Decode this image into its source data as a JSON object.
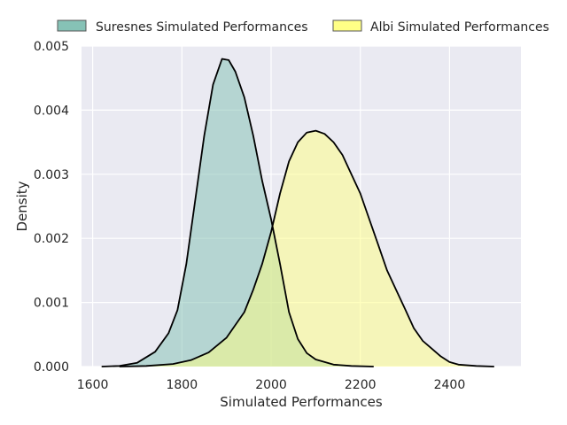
{
  "chart_data": {
    "type": "area",
    "xlabel": "Simulated Performances",
    "ylabel": "Density",
    "xlim": [
      1575,
      2560
    ],
    "ylim": [
      0,
      0.005
    ],
    "x_ticks": [
      1600,
      1800,
      2000,
      2200,
      2400
    ],
    "x_tick_labels": [
      "1600",
      "1800",
      "2000",
      "2200",
      "2400"
    ],
    "y_ticks": [
      0,
      0.001,
      0.002,
      0.003,
      0.004,
      0.005
    ],
    "y_tick_labels": [
      "0.000",
      "0.001",
      "0.002",
      "0.003",
      "0.004",
      "0.005"
    ],
    "grid": true,
    "legend_position": "top",
    "series": [
      {
        "name": "Suresnes Simulated Performances",
        "color": "#7fbfb2",
        "points": [
          [
            1620,
            0
          ],
          [
            1660,
            1e-05
          ],
          [
            1700,
            6e-05
          ],
          [
            1740,
            0.00023
          ],
          [
            1770,
            0.00052
          ],
          [
            1790,
            0.00088
          ],
          [
            1810,
            0.0016
          ],
          [
            1830,
            0.0026
          ],
          [
            1850,
            0.0036
          ],
          [
            1870,
            0.0044
          ],
          [
            1890,
            0.0048
          ],
          [
            1905,
            0.00478
          ],
          [
            1920,
            0.0046
          ],
          [
            1940,
            0.0042
          ],
          [
            1960,
            0.0036
          ],
          [
            1980,
            0.0029
          ],
          [
            2000,
            0.0023
          ],
          [
            2020,
            0.0016
          ],
          [
            2040,
            0.00085
          ],
          [
            2060,
            0.00043
          ],
          [
            2080,
            0.00021
          ],
          [
            2100,
            0.00011
          ],
          [
            2140,
            3e-05
          ],
          [
            2180,
            1e-05
          ],
          [
            2230,
            0
          ]
        ]
      },
      {
        "name": "Albi Simulated Performances",
        "color": "#ffff7f",
        "points": [
          [
            1660,
            0
          ],
          [
            1720,
            1e-05
          ],
          [
            1780,
            4e-05
          ],
          [
            1820,
            0.0001
          ],
          [
            1860,
            0.00022
          ],
          [
            1900,
            0.00045
          ],
          [
            1940,
            0.00085
          ],
          [
            1960,
            0.0012
          ],
          [
            1980,
            0.0016
          ],
          [
            2000,
            0.0021
          ],
          [
            2020,
            0.0027
          ],
          [
            2040,
            0.0032
          ],
          [
            2060,
            0.0035
          ],
          [
            2080,
            0.00365
          ],
          [
            2100,
            0.00368
          ],
          [
            2120,
            0.00363
          ],
          [
            2140,
            0.0035
          ],
          [
            2160,
            0.0033
          ],
          [
            2180,
            0.003
          ],
          [
            2200,
            0.0027
          ],
          [
            2220,
            0.0023
          ],
          [
            2240,
            0.0019
          ],
          [
            2260,
            0.0015
          ],
          [
            2280,
            0.0012
          ],
          [
            2300,
            0.0009
          ],
          [
            2320,
            0.0006
          ],
          [
            2340,
            0.0004
          ],
          [
            2360,
            0.00028
          ],
          [
            2380,
            0.00016
          ],
          [
            2400,
            7e-05
          ],
          [
            2420,
            3e-05
          ],
          [
            2460,
            1e-05
          ],
          [
            2500,
            0
          ]
        ]
      }
    ]
  }
}
